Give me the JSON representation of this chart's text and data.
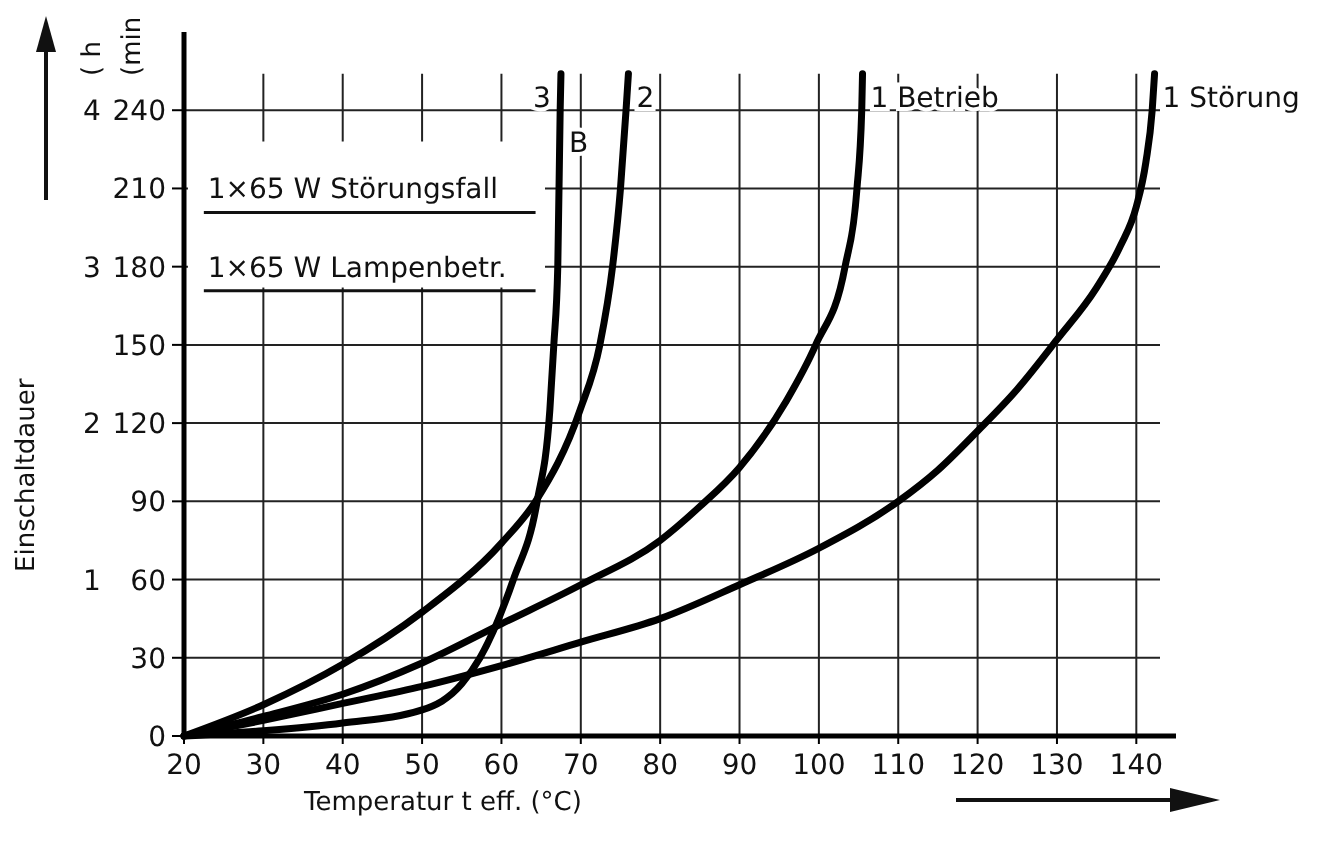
{
  "chart_data": {
    "type": "line",
    "xlabel": "Temperatur t eff. (°C)",
    "ylabel": "(min",
    "y2label": "( h",
    "xlim": [
      20,
      145
    ],
    "ylim": [
      0,
      270
    ],
    "y2lim": [
      0,
      4.5
    ],
    "xticks": [
      20,
      30,
      40,
      50,
      60,
      70,
      80,
      90,
      100,
      110,
      120,
      130,
      140
    ],
    "yticks": [
      0,
      30,
      60,
      90,
      120,
      150,
      180,
      210,
      240
    ],
    "y2ticks": [
      1,
      2,
      3,
      4
    ],
    "grid": true,
    "marker": "none",
    "line_style": "solid",
    "series": [
      {
        "color": "#000000",
        "x": [
          20,
          30,
          40,
          50,
          55,
          57.3,
          61.5,
          64.5,
          66.1,
          66.6,
          67.1,
          67.4,
          67.5
        ],
        "values": [
          0,
          2,
          5,
          10,
          20,
          30,
          60,
          90,
          125,
          150,
          180,
          240,
          254
        ]
      },
      {
        "color": "#000000",
        "x": [
          20,
          30,
          40,
          50,
          60,
          64.3,
          69.9,
          72.4,
          74,
          75,
          75.7,
          76
        ],
        "values": [
          0,
          12,
          27.5,
          47.5,
          74,
          90,
          125,
          150,
          180,
          210,
          240,
          254
        ]
      },
      {
        "color": "#000000",
        "x": [
          20,
          30,
          40,
          50,
          60,
          70,
          80,
          85,
          90,
          95.8,
          99.6,
          103.3,
          104.8,
          105.4,
          105.5
        ],
        "values": [
          0,
          7.5,
          16,
          28,
          43,
          58,
          75,
          88,
          103,
          128,
          150,
          180,
          210,
          240,
          254
        ]
      },
      {
        "color": "#000000",
        "x": [
          20,
          30,
          40,
          50,
          60,
          70,
          80,
          90,
          100,
          110,
          115,
          120,
          125,
          130,
          135,
          138,
          140,
          141.2,
          142,
          142.3
        ],
        "values": [
          0,
          6,
          12.5,
          19,
          27,
          36,
          45,
          58,
          72,
          90,
          102,
          117,
          133,
          152,
          172,
          188,
          203,
          220,
          240,
          254
        ]
      }
    ],
    "annotations": [
      "Einschaltdauer",
      "1×65 W Störungsfall",
      "1×65 W Lampenbetr.",
      "3",
      "B",
      "2",
      {
        "text": "1 Betrieb",
        "x": 106.5,
        "y": 245
      },
      {
        "text": "1 Störung",
        "x": 143.3,
        "y": 245
      }
    ]
  }
}
